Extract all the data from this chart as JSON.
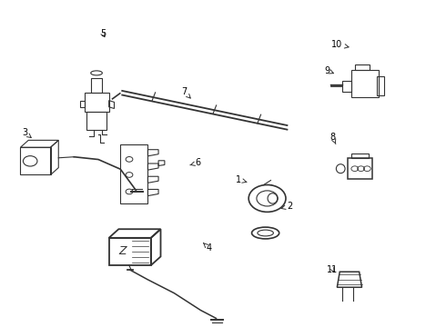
{
  "bg_color": "#ffffff",
  "line_color": "#333333",
  "label_color": "#000000",
  "fig_width": 4.9,
  "fig_height": 3.6,
  "dpi": 100,
  "labels": {
    "1": [
      0.535,
      0.45,
      0.555,
      0.442
    ],
    "2": [
      0.65,
      0.368,
      0.63,
      0.36
    ],
    "3": [
      0.052,
      0.595,
      0.068,
      0.578
    ],
    "4": [
      0.468,
      0.238,
      0.455,
      0.255
    ],
    "5": [
      0.228,
      0.903,
      0.236,
      0.882
    ],
    "6": [
      0.443,
      0.502,
      0.425,
      0.495
    ],
    "7": [
      0.412,
      0.722,
      0.428,
      0.7
    ],
    "8": [
      0.748,
      0.582,
      0.755,
      0.56
    ],
    "9": [
      0.735,
      0.788,
      0.752,
      0.778
    ],
    "10": [
      0.758,
      0.868,
      0.792,
      0.858
    ],
    "11": [
      0.748,
      0.172,
      0.755,
      0.155
    ]
  }
}
